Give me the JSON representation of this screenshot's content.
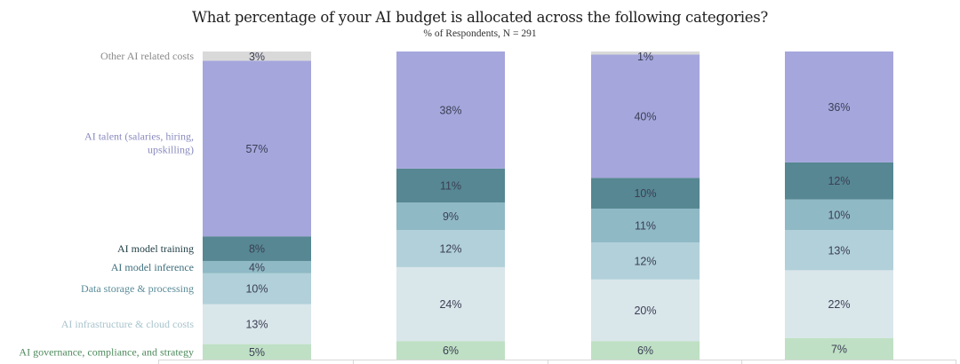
{
  "chart_data": {
    "type": "bar",
    "stacked": true,
    "title": "What percentage of your AI budget is allocated across the following categories?",
    "subtitle": "% of Respondents, N = 291",
    "xlabel": "",
    "ylabel": "",
    "ylim": [
      0,
      100
    ],
    "categories": [
      "",
      "",
      "",
      ""
    ],
    "series": [
      {
        "name": "AI governance, compliance, and strategy",
        "color": "#bfe0c4",
        "label_color": "#4e8a5c",
        "values": [
          5,
          6,
          6,
          7
        ]
      },
      {
        "name": "AI infrastructure & cloud costs",
        "color": "#d9e6ea",
        "label_color": "#a9c4cc",
        "values": [
          13,
          24,
          20,
          22
        ]
      },
      {
        "name": "Data storage & processing",
        "color": "#b1d0d9",
        "label_color": "#5a8b98",
        "values": [
          10,
          12,
          12,
          13
        ]
      },
      {
        "name": "AI model inference",
        "color": "#8fb9c5",
        "label_color": "#3f6f7c",
        "values": [
          4,
          9,
          11,
          10
        ]
      },
      {
        "name": "AI model training",
        "color": "#568792",
        "label_color": "#1f3d45",
        "values": [
          8,
          11,
          10,
          12
        ]
      },
      {
        "name": "AI talent (salaries, hiring, upskilling)",
        "color": "#a5a6dc",
        "label_color": "#8a8bc0",
        "values": [
          57,
          38,
          40,
          36
        ]
      },
      {
        "name": "Other AI related costs",
        "color": "#d9d9d9",
        "label_color": "#8a8a8a",
        "values": [
          3,
          0,
          1,
          0
        ]
      }
    ],
    "legend": "left",
    "grid": false
  }
}
